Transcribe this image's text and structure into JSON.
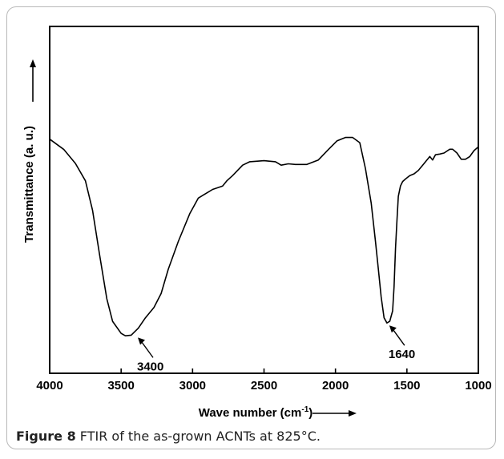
{
  "chart_data": {
    "type": "line",
    "xlabel": "Wave number (cm",
    "xlabel_sup": "-1",
    "xlabel_close": ")",
    "ylabel": "Transmittance (a. u.)",
    "xlim": [
      4000,
      1000
    ],
    "xticks": [
      4000,
      3500,
      3000,
      2500,
      2000,
      1500,
      1000
    ],
    "ylim": [
      0,
      100
    ],
    "grid": false,
    "legend": "none",
    "line_color": "#000000",
    "series": [
      {
        "x": [
          4000,
          3900,
          3820,
          3750,
          3700,
          3650,
          3600,
          3560,
          3500,
          3470,
          3430,
          3380,
          3330,
          3270,
          3220,
          3170,
          3100,
          3020,
          2960,
          2900,
          2860,
          2790,
          2760,
          2720,
          2650,
          2600,
          2500,
          2420,
          2380,
          2330,
          2280,
          2200,
          2120,
          2050,
          1990,
          1930,
          1880,
          1830,
          1790,
          1750,
          1720,
          1700,
          1680,
          1660,
          1640,
          1620,
          1600,
          1590,
          1580,
          1570,
          1560,
          1545,
          1530,
          1510,
          1480,
          1450,
          1420,
          1390,
          1360,
          1340,
          1320,
          1300,
          1270,
          1240,
          1200,
          1180,
          1150,
          1120,
          1090,
          1060,
          1030,
          1000
        ],
        "y": [
          67.5,
          64.5,
          60.5,
          55.5,
          47,
          34,
          21.5,
          15,
          11.5,
          10.8,
          11,
          13,
          16,
          19,
          23,
          30,
          38,
          46,
          50.5,
          52,
          53,
          54,
          55.5,
          57,
          60,
          61,
          61.3,
          61,
          60,
          60.4,
          60.2,
          60.2,
          61.5,
          64.5,
          67,
          68,
          68,
          66.5,
          59,
          49,
          38,
          30,
          22,
          16,
          14.5,
          15,
          18,
          25,
          36,
          44,
          51,
          54,
          55.3,
          56,
          57,
          57.5,
          58.5,
          60,
          61.5,
          62.5,
          61.5,
          63,
          63.2,
          63.5,
          64.6,
          64.6,
          63.5,
          61.7,
          61.7,
          62.5,
          64.2,
          65.3
        ]
      }
    ],
    "annotations": [
      {
        "text": "3400",
        "x": 3400,
        "y": 11
      },
      {
        "text": "1640",
        "x": 1640,
        "y": 14.5
      }
    ]
  },
  "caption": {
    "lead": "Figure 8",
    "text": " FTIR of the as-grown ACNTs at 825°C."
  }
}
